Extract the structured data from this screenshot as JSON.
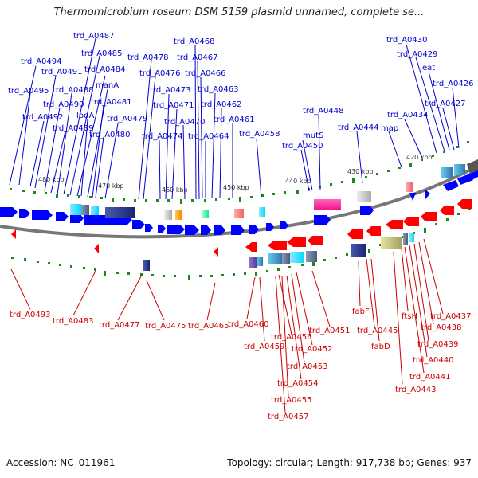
{
  "title": "Thermomicrobium roseum DSM 5159 plasmid unnamed, complete se...",
  "footer": {
    "accession": "Accession: NC_011961",
    "summary": "Topology: circular; Length: 917,738 bp; Genes: 937"
  },
  "colors": {
    "forward_label": "#0000cc",
    "reverse_label": "#cc0000",
    "forward_gene": "#0000ff",
    "reverse_gene": "#ff0000",
    "backbone": "#777777",
    "tick": "#1a8a1a"
  },
  "scale_labels": [
    "480 kbp",
    "470 kbp",
    "460 kbp",
    "450 kbp",
    "440 kbp",
    "430 kbp",
    "420 kbp"
  ],
  "forward_labels": [
    "trd_A0494",
    "trd_A0495",
    "trd_A0492",
    "trd_A0491",
    "trd_A0490",
    "trd_A0489",
    "trd_A0488",
    "trd_A0487",
    "trd_A0485",
    "trd_A0484",
    "lpdA",
    "manA",
    "trd_A0481",
    "trd_A0480",
    "trd_A0479",
    "trd_A0478",
    "trd_A0476",
    "trd_A0474",
    "trd_A0473",
    "trd_A0471",
    "trd_A0470",
    "trd_A0468",
    "trd_A0467",
    "trd_A0466",
    "trd_A0464",
    "trd_A0463",
    "trd_A0462",
    "trd_A0461",
    "trd_A0458",
    "trd_A0450",
    "mutS",
    "trd_A0448",
    "trd_A0444",
    "map",
    "trd_A0434",
    "trd_A0430",
    "trd_A0429",
    "eat",
    "trd_A0426",
    "trd_A0427"
  ],
  "reverse_labels": [
    "trd_A0493",
    "trd_A0483",
    "trd_A0477",
    "trd_A0475",
    "trd_A0465",
    "trd_A0460",
    "trd_A0459",
    "trd_A0456",
    "trd_A0451",
    "trd_A0452",
    "trd_A0453",
    "trd_A0454",
    "trd_A0455",
    "trd_A0457",
    "fabF",
    "trd_A0445",
    "fabD",
    "ftsH",
    "trd_A0443",
    "trd_A0441",
    "trd_A0440",
    "trd_A0439",
    "trd_A0438",
    "trd_A0437"
  ]
}
